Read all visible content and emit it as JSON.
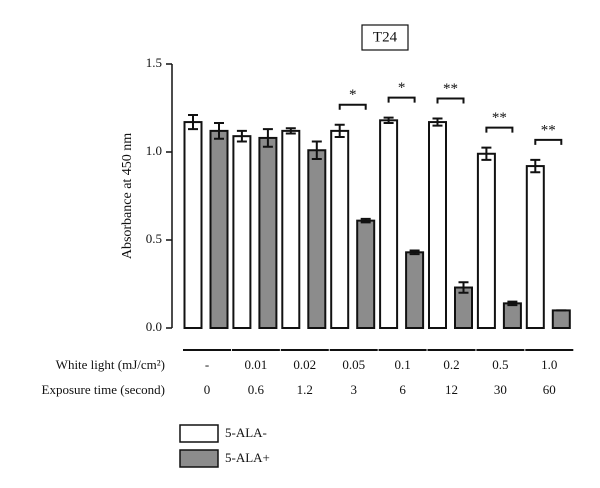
{
  "chart_data": {
    "type": "bar",
    "title": "T24",
    "ylabel": "Absorbance at 450 nm",
    "ylim": [
      0,
      1.5
    ],
    "yticks": [
      {
        "value": 0,
        "label": "0.0"
      },
      0.5,
      {
        "value": 1,
        "label": "1.0"
      },
      1.5
    ],
    "series": [
      {
        "name": "5-ALA-",
        "color": "#ffffff",
        "values": [
          1.17,
          1.09,
          1.12,
          1.12,
          1.18,
          1.17,
          0.99,
          0.92
        ],
        "errors": [
          0.04,
          0.03,
          0.015,
          0.035,
          0.015,
          0.02,
          0.035,
          0.035
        ]
      },
      {
        "name": "5-ALA+",
        "color": "#8c8c8c",
        "values": [
          1.12,
          1.08,
          1.01,
          0.61,
          0.43,
          0.23,
          0.14,
          0.1
        ],
        "errors": [
          0.045,
          0.05,
          0.05,
          0.01,
          0.01,
          0.03,
          0.01,
          0
        ]
      }
    ],
    "significance": [
      null,
      null,
      null,
      "*",
      "*",
      "**",
      "**",
      "**"
    ],
    "conditions": {
      "white_light_label": "White light (mJ/cm²)",
      "white_light": [
        "-",
        "0.01",
        "0.02",
        "0.05",
        "0.1",
        "0.2",
        "0.5",
        "1.0"
      ],
      "exposure_label": "Exposure time (second)",
      "exposure": [
        "0",
        "0.6",
        "1.2",
        "3",
        "6",
        "12",
        "30",
        "60"
      ]
    }
  }
}
